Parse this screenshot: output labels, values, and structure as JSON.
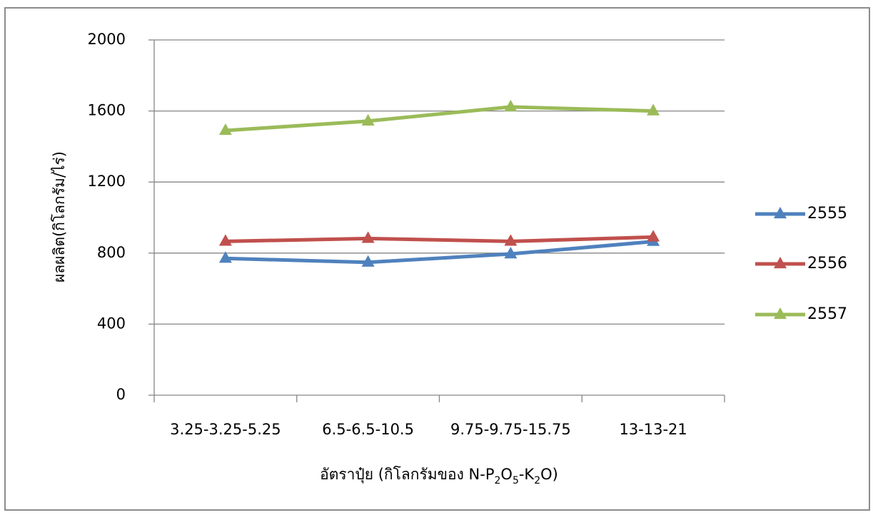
{
  "chart_data": {
    "type": "line",
    "title": "",
    "categories": [
      "3.25-3.25-5.25",
      "6.5-6.5-10.5",
      "9.75-9.75-15.75",
      "13-13-21"
    ],
    "xlabel": {
      "prefix": "อัตราปุ๋ย (กิโลกรัมของ N-P",
      "sub1": "2",
      "mid1": "O",
      "sub2": "5",
      "mid2": "-K",
      "sub3": "2",
      "suffix": "O)"
    },
    "ylabel": "ผลผลิต(กิโลกรัม/ไร่)",
    "ylim": [
      0,
      2000
    ],
    "yticks": [
      0,
      400,
      800,
      1200,
      1600,
      2000
    ],
    "grid": true,
    "legend_position": "right",
    "marker": "triangle",
    "series": [
      {
        "name": "2555",
        "color": "#4F81BD",
        "values": [
          770,
          748,
          795,
          865
        ]
      },
      {
        "name": "2556",
        "color": "#C0504D",
        "values": [
          866,
          882,
          866,
          890
        ]
      },
      {
        "name": "2557",
        "color": "#9BBB59",
        "values": [
          1490,
          1543,
          1623,
          1600
        ]
      }
    ]
  }
}
